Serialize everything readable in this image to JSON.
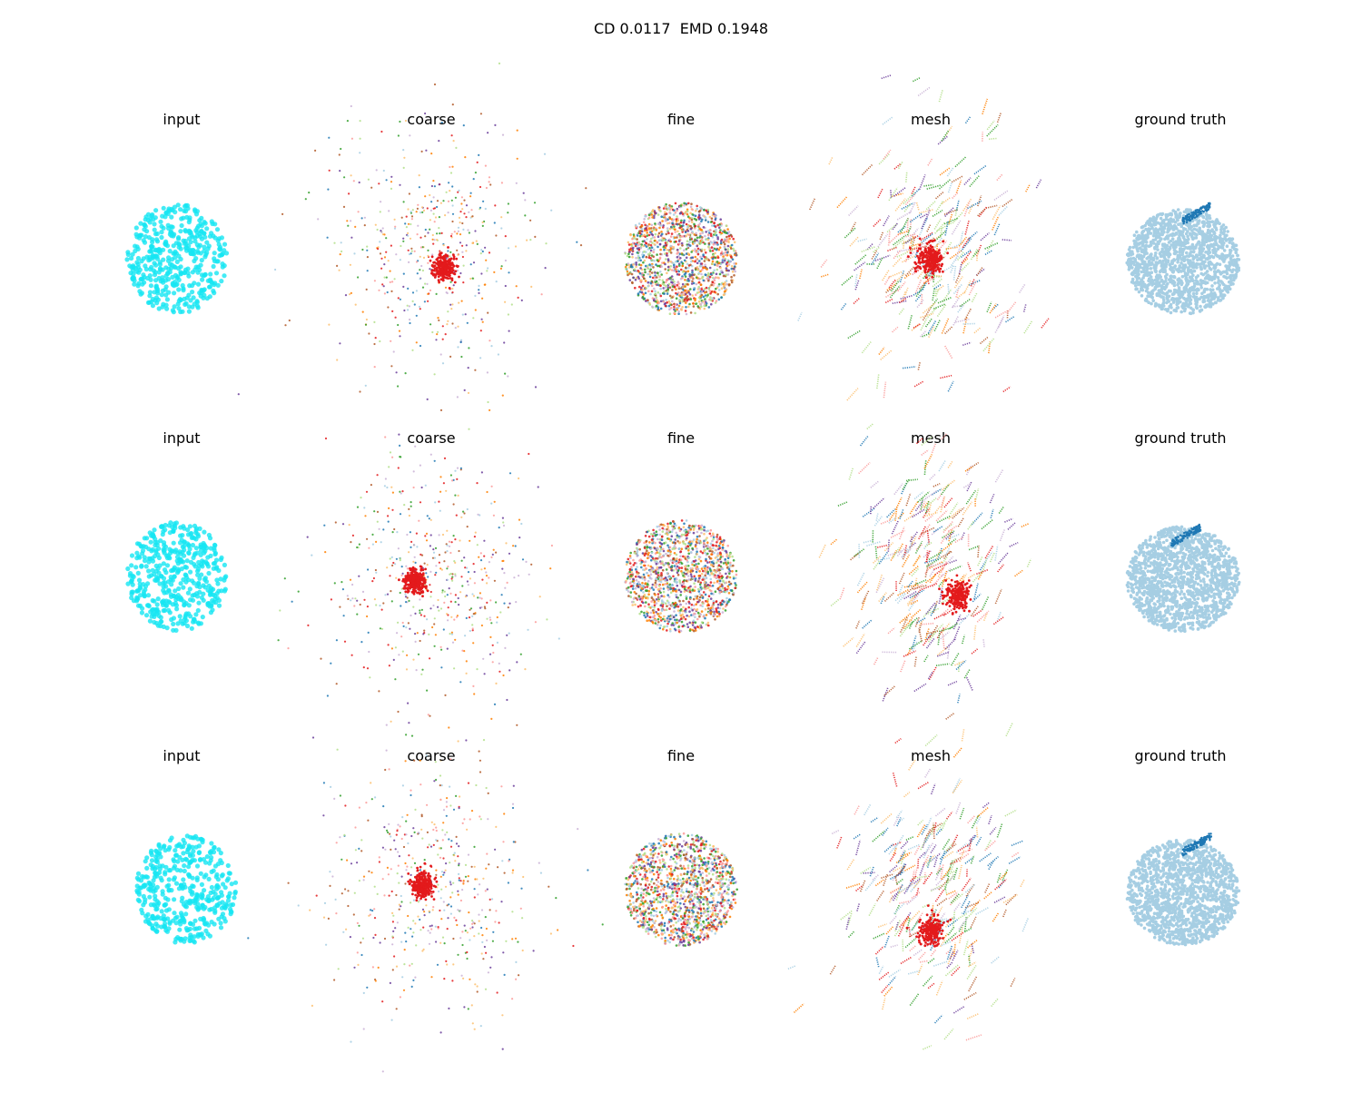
{
  "suptitle": "CD 0.0117  EMD 0.1948",
  "palette": [
    "#a6cee3",
    "#1f78b4",
    "#b2df8a",
    "#33a02c",
    "#fb9a99",
    "#e31a1c",
    "#fdbf6f",
    "#ff7f00",
    "#cab2d6",
    "#6a3d9a",
    "#b15928"
  ],
  "colors": {
    "input": "#17e6f2",
    "gt_main": "#a6cee3",
    "gt_accent": "#1f78b4",
    "dense_core": "#e31a1c"
  },
  "chart_data": {
    "type": "scatter",
    "description_free": true,
    "columns": [
      "input",
      "coarse",
      "fine",
      "mesh",
      "ground truth"
    ],
    "rows": [
      {
        "panels": [
          "input",
          "coarse",
          "fine",
          "mesh",
          "ground truth"
        ]
      },
      {
        "panels": [
          "input",
          "coarse",
          "fine",
          "mesh",
          "ground truth"
        ]
      },
      {
        "panels": [
          "input",
          "coarse",
          "fine",
          "mesh",
          "ground truth"
        ]
      }
    ],
    "axes_visible": false,
    "grid": false,
    "legend": "none"
  }
}
